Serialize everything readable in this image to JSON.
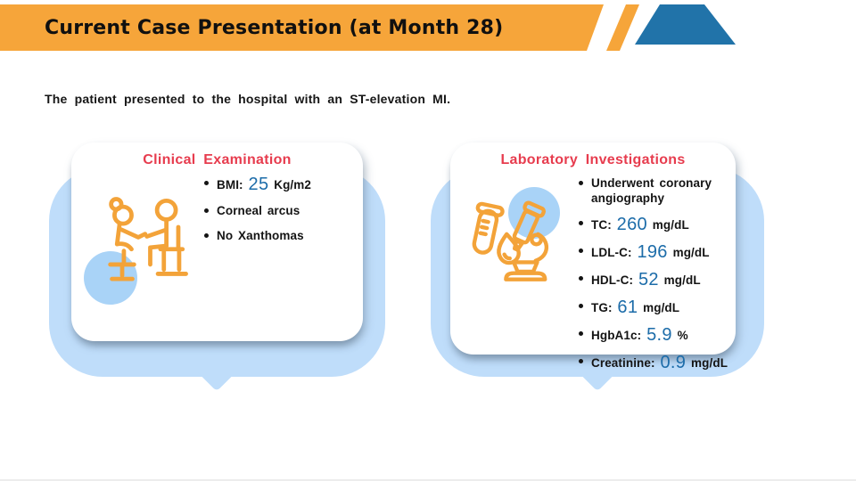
{
  "slide": {
    "title": "Current Case Presentation (at Month 28)",
    "subtitle": "The patient presented to the hospital with an ST-elevation MI."
  },
  "cards": [
    {
      "title": "Clinical Examination",
      "icon": "doctor-examining-patient-icon",
      "bullets": [
        {
          "pre": "BMI:",
          "value": "25",
          "post": "Kg/m2"
        },
        {
          "pre": "Corneal arcus",
          "value": "",
          "post": ""
        },
        {
          "pre": "No Xanthomas",
          "value": "",
          "post": ""
        }
      ]
    },
    {
      "title": "Laboratory Investigations",
      "icon": "lab-microscope-test-tube-icon",
      "bullets": [
        {
          "pre": "Underwent coronary angiography",
          "value": "",
          "post": ""
        },
        {
          "pre": "TC:",
          "value": "260",
          "post": "mg/dL"
        },
        {
          "pre": "LDL-C:",
          "value": "196",
          "post": "mg/dL"
        },
        {
          "pre": "HDL-C:",
          "value": "52",
          "post": "mg/dL"
        },
        {
          "pre": "TG:",
          "value": "61",
          "post": "mg/dL"
        },
        {
          "pre": "HgbA1c:",
          "value": "5.9",
          "post": "%"
        },
        {
          "pre": "Creatinine:",
          "value": "0.9",
          "post": "mg/dL"
        }
      ]
    }
  ],
  "colors": {
    "banner_orange": "#F6A53A",
    "accent_blue": "#2173A9",
    "bubble_blue": "#BFDDFA",
    "icon_circle_blue": "#A9D3F7",
    "title_red": "#E73C4E",
    "value_blue": "#1C6CA9",
    "icon_stroke_orange": "#F3A339",
    "text_dark": "#151515"
  }
}
